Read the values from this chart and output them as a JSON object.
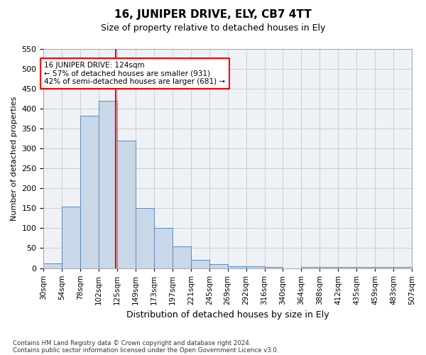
{
  "title": "16, JUNIPER DRIVE, ELY, CB7 4TT",
  "subtitle": "Size of property relative to detached houses in Ely",
  "xlabel": "Distribution of detached houses by size in Ely",
  "ylabel": "Number of detached properties",
  "footnote1": "Contains HM Land Registry data © Crown copyright and database right 2024.",
  "footnote2": "Contains public sector information licensed under the Open Government Licence v3.0.",
  "annotation_line1": "16 JUNIPER DRIVE: 124sqm",
  "annotation_line2": "← 57% of detached houses are smaller (931)",
  "annotation_line3": "42% of semi-detached houses are larger (681) →",
  "bin_edges": [
    30,
    54,
    78,
    102,
    126,
    150,
    174,
    198,
    222,
    246,
    270,
    294,
    318,
    342,
    366,
    390,
    414,
    438,
    462,
    486,
    510
  ],
  "bin_labels": [
    "30sqm",
    "54sqm",
    "78sqm",
    "102sqm",
    "125sqm",
    "149sqm",
    "173sqm",
    "197sqm",
    "221sqm",
    "245sqm",
    "269sqm",
    "292sqm",
    "316sqm",
    "340sqm",
    "364sqm",
    "388sqm",
    "412sqm",
    "435sqm",
    "459sqm",
    "483sqm",
    "507sqm"
  ],
  "counts": [
    12,
    155,
    383,
    420,
    320,
    150,
    100,
    55,
    20,
    10,
    5,
    5,
    3,
    0,
    2,
    2,
    2,
    2,
    2,
    2
  ],
  "bar_color": "#c8d8e8",
  "bar_edge_color": "#5a8abf",
  "grid_color": "#cccccc",
  "vline_x": 124,
  "vline_color": "red",
  "ylim": [
    0,
    550
  ],
  "yticks": [
    0,
    50,
    100,
    150,
    200,
    250,
    300,
    350,
    400,
    450,
    500,
    550
  ],
  "annotation_box_color": "red",
  "background_color": "#eef2f7"
}
